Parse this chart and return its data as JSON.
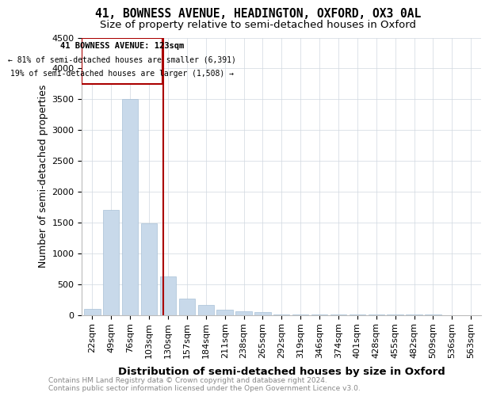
{
  "title": "41, BOWNESS AVENUE, HEADINGTON, OXFORD, OX3 0AL",
  "subtitle": "Size of property relative to semi-detached houses in Oxford",
  "xlabel": "Distribution of semi-detached houses by size in Oxford",
  "ylabel": "Number of semi-detached properties",
  "footnote": "Contains HM Land Registry data © Crown copyright and database right 2024.\nContains public sector information licensed under the Open Government Licence v3.0.",
  "property_label": "41 BOWNESS AVENUE: 123sqm",
  "annotation_line1": "← 81% of semi-detached houses are smaller (6,391)",
  "annotation_line2": "19% of semi-detached houses are larger (1,508) →",
  "categories": [
    "22sqm",
    "49sqm",
    "76sqm",
    "103sqm",
    "130sqm",
    "157sqm",
    "184sqm",
    "211sqm",
    "238sqm",
    "265sqm",
    "292sqm",
    "319sqm",
    "346sqm",
    "374sqm",
    "401sqm",
    "428sqm",
    "455sqm",
    "482sqm",
    "509sqm",
    "536sqm",
    "563sqm"
  ],
  "values": [
    100,
    1700,
    3500,
    1480,
    620,
    260,
    155,
    80,
    60,
    40,
    10,
    5,
    4,
    3,
    2,
    2,
    1,
    1,
    1,
    0,
    0
  ],
  "bar_color": "#c8d9ea",
  "bar_edge_color": "#a8c0d6",
  "vline_color": "#aa0000",
  "annotation_box_color": "#aa0000",
  "ylim": [
    0,
    4500
  ],
  "yticks": [
    0,
    500,
    1000,
    1500,
    2000,
    2500,
    3000,
    3500,
    4000,
    4500
  ],
  "bg_color": "#ffffff",
  "grid_color": "#d0d8e0",
  "title_fontsize": 10.5,
  "subtitle_fontsize": 9.5,
  "axis_label_fontsize": 9,
  "tick_fontsize": 8,
  "footnote_fontsize": 6.5,
  "vline_x": 3.74
}
